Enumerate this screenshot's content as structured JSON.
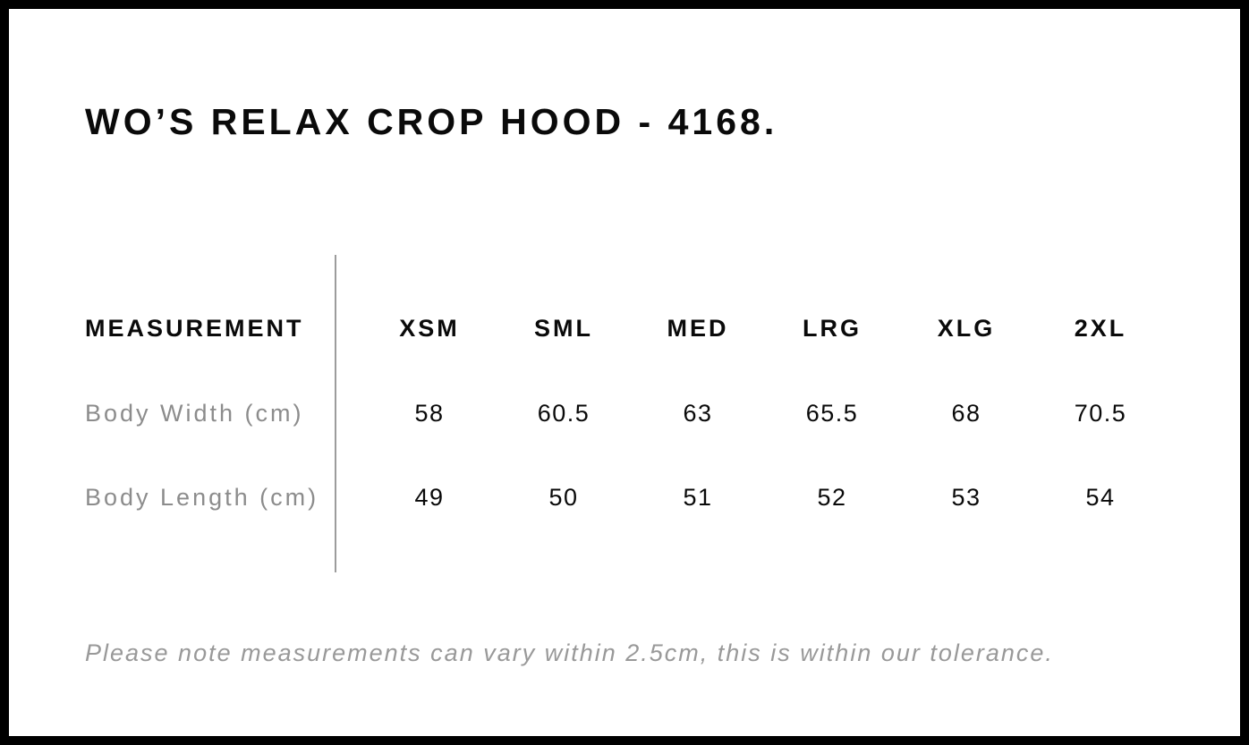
{
  "title": "WO’S RELAX CROP HOOD - 4168.",
  "note": "Please note measurements can vary within 2.5cm, this is within our tolerance.",
  "chart_data": {
    "type": "table",
    "title": "WO’S RELAX CROP HOOD - 4168.",
    "columns": [
      "MEASUREMENT",
      "XSM",
      "SML",
      "MED",
      "LRG",
      "XLG",
      "2XL"
    ],
    "rows": [
      {
        "label": "Body Width (cm)",
        "values": [
          "58",
          "60.5",
          "63",
          "65.5",
          "68",
          "70.5"
        ]
      },
      {
        "label": "Body Length (cm)",
        "values": [
          "49",
          "50",
          "51",
          "52",
          "53",
          "54"
        ]
      }
    ],
    "note": "Please note measurements can vary within 2.5cm, this is within our tolerance.",
    "layout_hints": {
      "label_column_divider": true,
      "units": "cm",
      "tolerance_cm": 2.5
    }
  },
  "colors": {
    "background": "#ffffff",
    "page_border": "#000000",
    "text_primary": "#0a0a0a",
    "text_muted": "#8c8c8c",
    "note_text": "#999999",
    "divider": "#9c9c9c"
  }
}
